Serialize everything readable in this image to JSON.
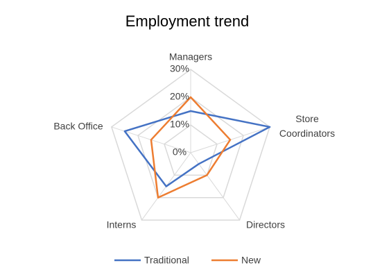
{
  "chart_data": {
    "type": "radar",
    "title": "Employment trend",
    "categories": [
      "Managers",
      "Store Coordinators",
      "Directors",
      "Interns",
      "Back Office"
    ],
    "series": [
      {
        "name": "Traditional",
        "color": "#4472c4",
        "values": [
          15,
          30,
          5,
          15,
          25
        ]
      },
      {
        "name": "New",
        "color": "#ed7d31",
        "values": [
          20,
          15,
          10,
          20,
          15
        ]
      }
    ],
    "ylim": [
      0,
      30
    ],
    "yticks": [
      {
        "value": 0,
        "label": "0%"
      },
      {
        "value": 10,
        "label": "10%"
      },
      {
        "value": 20,
        "label": "20%"
      },
      {
        "value": 30,
        "label": "30%"
      }
    ],
    "grid": true,
    "legend": "bottom"
  }
}
